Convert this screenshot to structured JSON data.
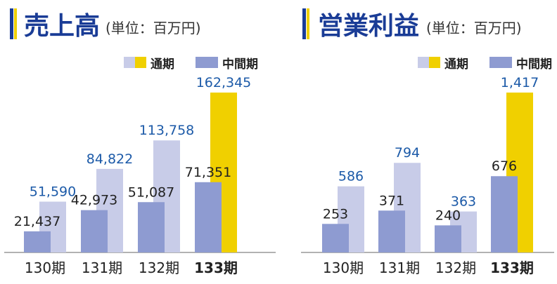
{
  "colors": {
    "title": "#1a3c96",
    "full_year_past": "#c8cce8",
    "full_year_current": "#f0d000",
    "interim": "#8e9bd1",
    "full_value_text": "#1c5aa8",
    "interim_value_text": "#222222",
    "axis": "#999999"
  },
  "chart_data": [
    {
      "type": "bar",
      "title": "売上高",
      "subtitle": "(単位：百万円)",
      "legend": [
        "通期",
        "中間期"
      ],
      "legend_position": "top-right",
      "categories": [
        "130期",
        "131期",
        "132期",
        "133期"
      ],
      "highlight_category": "133期",
      "series": [
        {
          "name": "通期",
          "values": [
            51590,
            84822,
            113758,
            162345
          ],
          "labels": [
            "51,590",
            "84,822",
            "113,758",
            "162,345"
          ]
        },
        {
          "name": "中間期",
          "values": [
            21437,
            42973,
            51087,
            71351
          ],
          "labels": [
            "21,437",
            "42,973",
            "51,087",
            "71,351"
          ]
        }
      ],
      "ylim": [
        0,
        162345
      ],
      "grid": false
    },
    {
      "type": "bar",
      "title": "営業利益",
      "subtitle": "(単位：百万円)",
      "legend": [
        "通期",
        "中間期"
      ],
      "legend_position": "top-right",
      "categories": [
        "130期",
        "131期",
        "132期",
        "133期"
      ],
      "highlight_category": "133期",
      "series": [
        {
          "name": "通期",
          "values": [
            586,
            794,
            363,
            1417
          ],
          "labels": [
            "586",
            "794",
            "363",
            "1,417"
          ]
        },
        {
          "name": "中間期",
          "values": [
            253,
            371,
            240,
            676
          ],
          "labels": [
            "253",
            "371",
            "240",
            "676"
          ]
        }
      ],
      "ylim": [
        0,
        1417
      ],
      "grid": false
    }
  ]
}
